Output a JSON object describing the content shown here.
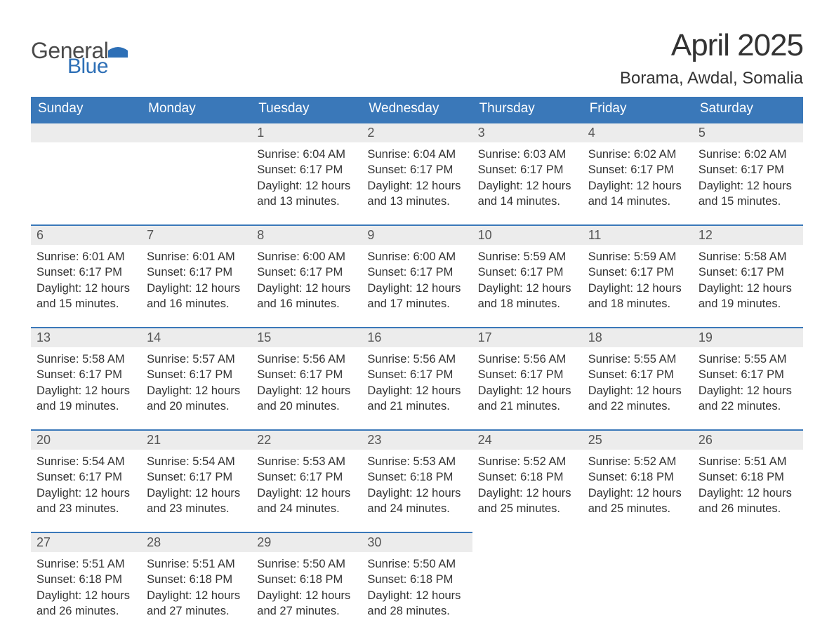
{
  "brand": {
    "word1": "General",
    "word2": "Blue",
    "logo_color": "#2d6fb6"
  },
  "title": "April 2025",
  "location": "Borama, Awdal, Somalia",
  "header_bg": "#3a78b9",
  "daynum_bg": "#ececec",
  "weekdays": [
    "Sunday",
    "Monday",
    "Tuesday",
    "Wednesday",
    "Thursday",
    "Friday",
    "Saturday"
  ],
  "weeks": [
    {
      "days": [
        null,
        null,
        {
          "n": "1",
          "sunrise": "6:04 AM",
          "sunset": "6:17 PM",
          "daylight": "12 hours and 13 minutes."
        },
        {
          "n": "2",
          "sunrise": "6:04 AM",
          "sunset": "6:17 PM",
          "daylight": "12 hours and 13 minutes."
        },
        {
          "n": "3",
          "sunrise": "6:03 AM",
          "sunset": "6:17 PM",
          "daylight": "12 hours and 14 minutes."
        },
        {
          "n": "4",
          "sunrise": "6:02 AM",
          "sunset": "6:17 PM",
          "daylight": "12 hours and 14 minutes."
        },
        {
          "n": "5",
          "sunrise": "6:02 AM",
          "sunset": "6:17 PM",
          "daylight": "12 hours and 15 minutes."
        }
      ]
    },
    {
      "days": [
        {
          "n": "6",
          "sunrise": "6:01 AM",
          "sunset": "6:17 PM",
          "daylight": "12 hours and 15 minutes."
        },
        {
          "n": "7",
          "sunrise": "6:01 AM",
          "sunset": "6:17 PM",
          "daylight": "12 hours and 16 minutes."
        },
        {
          "n": "8",
          "sunrise": "6:00 AM",
          "sunset": "6:17 PM",
          "daylight": "12 hours and 16 minutes."
        },
        {
          "n": "9",
          "sunrise": "6:00 AM",
          "sunset": "6:17 PM",
          "daylight": "12 hours and 17 minutes."
        },
        {
          "n": "10",
          "sunrise": "5:59 AM",
          "sunset": "6:17 PM",
          "daylight": "12 hours and 18 minutes."
        },
        {
          "n": "11",
          "sunrise": "5:59 AM",
          "sunset": "6:17 PM",
          "daylight": "12 hours and 18 minutes."
        },
        {
          "n": "12",
          "sunrise": "5:58 AM",
          "sunset": "6:17 PM",
          "daylight": "12 hours and 19 minutes."
        }
      ]
    },
    {
      "days": [
        {
          "n": "13",
          "sunrise": "5:58 AM",
          "sunset": "6:17 PM",
          "daylight": "12 hours and 19 minutes."
        },
        {
          "n": "14",
          "sunrise": "5:57 AM",
          "sunset": "6:17 PM",
          "daylight": "12 hours and 20 minutes."
        },
        {
          "n": "15",
          "sunrise": "5:56 AM",
          "sunset": "6:17 PM",
          "daylight": "12 hours and 20 minutes."
        },
        {
          "n": "16",
          "sunrise": "5:56 AM",
          "sunset": "6:17 PM",
          "daylight": "12 hours and 21 minutes."
        },
        {
          "n": "17",
          "sunrise": "5:56 AM",
          "sunset": "6:17 PM",
          "daylight": "12 hours and 21 minutes."
        },
        {
          "n": "18",
          "sunrise": "5:55 AM",
          "sunset": "6:17 PM",
          "daylight": "12 hours and 22 minutes."
        },
        {
          "n": "19",
          "sunrise": "5:55 AM",
          "sunset": "6:17 PM",
          "daylight": "12 hours and 22 minutes."
        }
      ]
    },
    {
      "days": [
        {
          "n": "20",
          "sunrise": "5:54 AM",
          "sunset": "6:17 PM",
          "daylight": "12 hours and 23 minutes."
        },
        {
          "n": "21",
          "sunrise": "5:54 AM",
          "sunset": "6:17 PM",
          "daylight": "12 hours and 23 minutes."
        },
        {
          "n": "22",
          "sunrise": "5:53 AM",
          "sunset": "6:17 PM",
          "daylight": "12 hours and 24 minutes."
        },
        {
          "n": "23",
          "sunrise": "5:53 AM",
          "sunset": "6:18 PM",
          "daylight": "12 hours and 24 minutes."
        },
        {
          "n": "24",
          "sunrise": "5:52 AM",
          "sunset": "6:18 PM",
          "daylight": "12 hours and 25 minutes."
        },
        {
          "n": "25",
          "sunrise": "5:52 AM",
          "sunset": "6:18 PM",
          "daylight": "12 hours and 25 minutes."
        },
        {
          "n": "26",
          "sunrise": "5:51 AM",
          "sunset": "6:18 PM",
          "daylight": "12 hours and 26 minutes."
        }
      ]
    },
    {
      "days": [
        {
          "n": "27",
          "sunrise": "5:51 AM",
          "sunset": "6:18 PM",
          "daylight": "12 hours and 26 minutes."
        },
        {
          "n": "28",
          "sunrise": "5:51 AM",
          "sunset": "6:18 PM",
          "daylight": "12 hours and 27 minutes."
        },
        {
          "n": "29",
          "sunrise": "5:50 AM",
          "sunset": "6:18 PM",
          "daylight": "12 hours and 27 minutes."
        },
        {
          "n": "30",
          "sunrise": "5:50 AM",
          "sunset": "6:18 PM",
          "daylight": "12 hours and 28 minutes."
        },
        null,
        null,
        null
      ]
    }
  ],
  "labels": {
    "sunrise": "Sunrise: ",
    "sunset": "Sunset: ",
    "daylight": "Daylight: "
  }
}
